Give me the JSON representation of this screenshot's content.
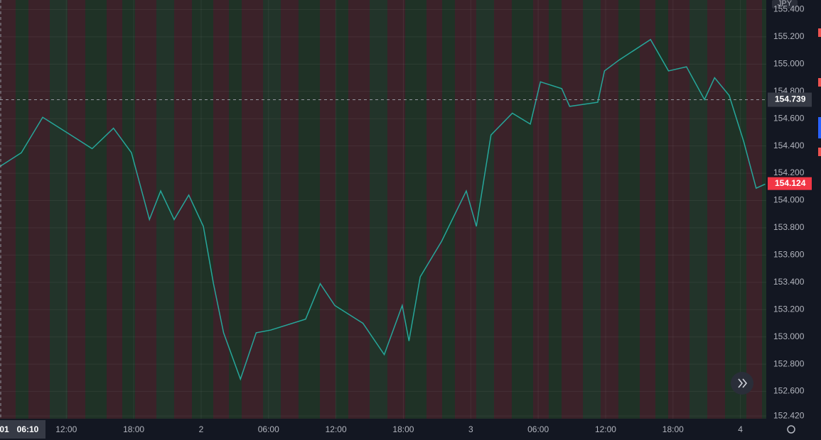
{
  "chart_data": {
    "type": "line",
    "currency": "JPY",
    "x": [
      6.1,
      8.0,
      9.9,
      12.4,
      14.3,
      16.2,
      17.8,
      19.4,
      20.4,
      21.6,
      22.9,
      24.2,
      25.1,
      26.0,
      27.5,
      28.9,
      30.2,
      33.3,
      34.6,
      35.9,
      38.4,
      40.3,
      41.9,
      42.5,
      43.5,
      45.4,
      47.6,
      48.5,
      49.8,
      51.7,
      53.3,
      54.2,
      56.1,
      56.8,
      59.3,
      59.9,
      61.2,
      64.0,
      65.6,
      67.2,
      68.8,
      69.7,
      71.0,
      72.3,
      73.4,
      74.2
    ],
    "series": [
      {
        "color": "#26a69a",
        "values": [
          154.25,
          154.35,
          154.61,
          154.48,
          154.38,
          154.53,
          154.35,
          153.86,
          154.07,
          153.86,
          154.04,
          153.81,
          153.39,
          153.03,
          152.69,
          153.03,
          153.05,
          153.13,
          153.39,
          153.23,
          153.1,
          152.87,
          153.23,
          152.97,
          153.44,
          153.7,
          154.07,
          153.81,
          154.48,
          154.64,
          154.56,
          154.87,
          154.82,
          154.69,
          154.72,
          154.95,
          155.03,
          155.18,
          154.95,
          154.98,
          154.74,
          154.9,
          154.77,
          154.43,
          154.09,
          154.12
        ]
      }
    ],
    "xlim": [
      6.1,
      74.3
    ],
    "xticks": [
      {
        "value": 12,
        "label": "12:00"
      },
      {
        "value": 18,
        "label": "18:00"
      },
      {
        "value": 24,
        "label": "2"
      },
      {
        "value": 30,
        "label": "06:00"
      },
      {
        "value": 36,
        "label": "12:00"
      },
      {
        "value": 42,
        "label": "18:00"
      },
      {
        "value": 48,
        "label": "3"
      },
      {
        "value": 54,
        "label": "06:00"
      },
      {
        "value": 60,
        "label": "12:00"
      },
      {
        "value": 66,
        "label": "18:00"
      },
      {
        "value": 72,
        "label": "4"
      }
    ],
    "ylim": [
      152.4,
      155.47
    ],
    "yticks": [
      {
        "value": 152.42,
        "label": "152.420"
      },
      {
        "value": 152.6,
        "label": "152.600"
      },
      {
        "value": 152.8,
        "label": "152.800"
      },
      {
        "value": 153,
        "label": "153.000"
      },
      {
        "value": 153.2,
        "label": "153.200"
      },
      {
        "value": 153.4,
        "label": "153.400"
      },
      {
        "value": 153.6,
        "label": "153.600"
      },
      {
        "value": 153.8,
        "label": "153.800"
      },
      {
        "value": 154,
        "label": "154.000"
      },
      {
        "value": 154.2,
        "label": "154.200"
      },
      {
        "value": 154.4,
        "label": "154.400"
      },
      {
        "value": 154.6,
        "label": "154.600"
      },
      {
        "value": 154.8,
        "label": "154.800"
      },
      {
        "value": 155,
        "label": "155.000"
      },
      {
        "value": 155.2,
        "label": "155.200"
      },
      {
        "value": 155.4,
        "label": "155.400"
      }
    ],
    "grid": true,
    "crosshair": {
      "date": "01",
      "time": "06:10",
      "price": 154.739
    },
    "last_price": 154.124
  }
}
